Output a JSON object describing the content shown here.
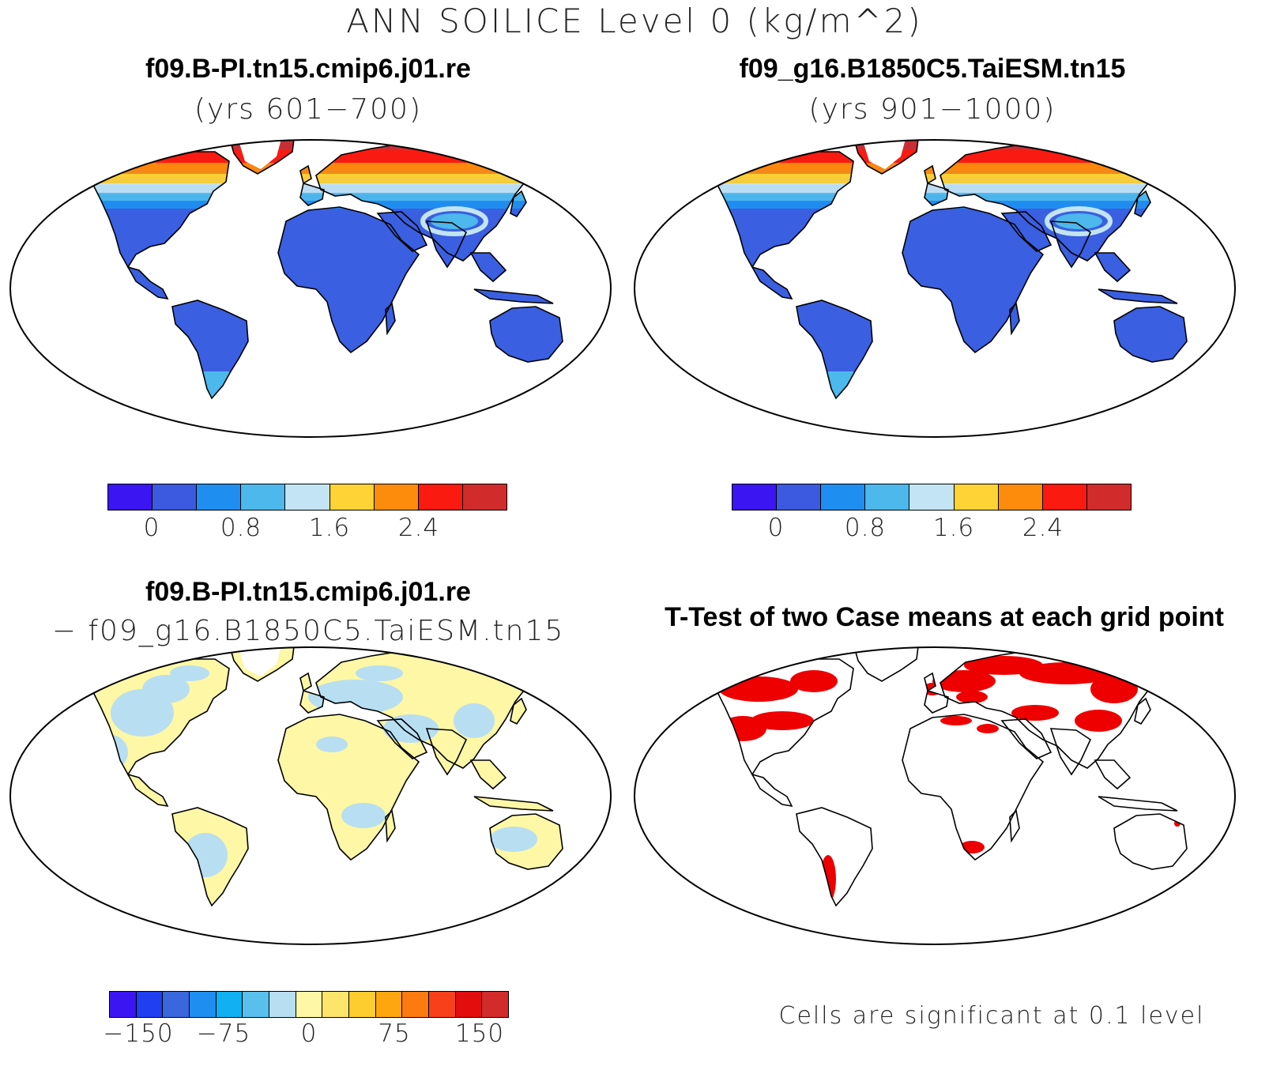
{
  "title": "ANN SOILICE Level 0 (kg/m^2)",
  "panels": [
    {
      "title": "f09.B-PI.tn15.cmip6.j01.re",
      "subtitle": "(yrs 601−700)"
    },
    {
      "title": "f09_g16.B1850C5.TaiESM.tn15",
      "subtitle": "(yrs 901−1000)"
    },
    {
      "title": "f09.B-PI.tn15.cmip6.j01.re",
      "subtitle": "− f09_g16.B1850C5.TaiESM.tn15"
    },
    {
      "title": "T-Test of two Case means at each grid point",
      "subtitle": ""
    }
  ],
  "colorbars": {
    "cases": {
      "colors": [
        "#3b16f2",
        "#3b5ae0",
        "#1e8ef0",
        "#4cb8ec",
        "#c2e4f4",
        "#fdd335",
        "#fd8c0c",
        "#fb1a10",
        "#d22b2b"
      ],
      "ticks": [
        "0",
        "0.8",
        "1.6",
        "2.4"
      ]
    },
    "diff": {
      "colors": [
        "#3b16f2",
        "#1f3ff0",
        "#3a67de",
        "#1e8ef0",
        "#10b0f2",
        "#59c0ee",
        "#b8def2",
        "#fdf7a6",
        "#fde46a",
        "#fdcc2e",
        "#fda60e",
        "#fd7a10",
        "#f8401a",
        "#e20d0d",
        "#d22b2b"
      ],
      "ticks": [
        "−150",
        "−75",
        "0",
        "75",
        "150"
      ]
    }
  },
  "footnote": "Cells are significant at 0.1 level",
  "colors": {
    "ocean": "#ffffff",
    "land_base": "#3a5fe0",
    "diff_pos": "#fdf7a6",
    "diff_neg": "#b8def2",
    "significant": "#ee0000"
  }
}
